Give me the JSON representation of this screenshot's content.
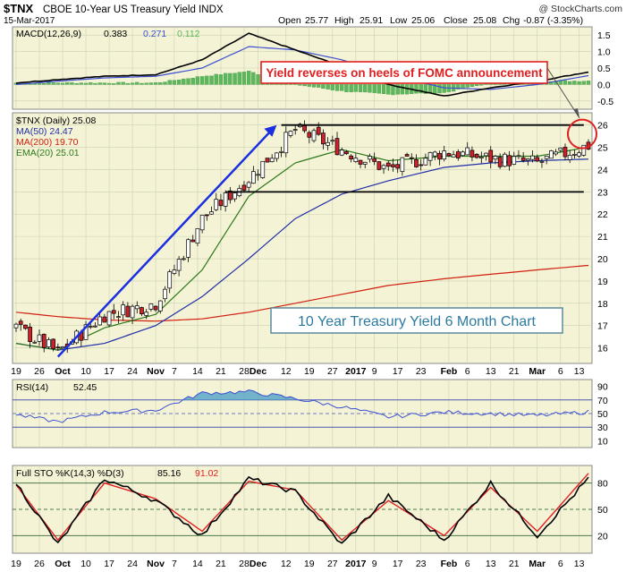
{
  "header": {
    "symbol": "$TNX",
    "name": "CBOE 10-Year US Treasury Yield INDX",
    "credit": "@ StockCharts.com",
    "date": "15-Mar-2017",
    "open_label": "Open",
    "open": "25.77",
    "high_label": "High",
    "high": "25.91",
    "low_label": "Low",
    "low": "25.06",
    "close_label": "Close",
    "close": "25.08",
    "chg_label": "Chg",
    "chg": "-0.87 (-3.35%)"
  },
  "annotations": {
    "fomc": "Yield reverses on heels of FOMC announcement",
    "title_box": "10 Year Treasury Yield 6 Month Chart"
  },
  "x_axis": {
    "labels": [
      "19",
      "26",
      "Oct",
      "10",
      "17",
      "24",
      "Nov",
      "7",
      "14",
      "21",
      "28",
      "Dec",
      "12",
      "19",
      "27",
      "2017",
      "9",
      "17",
      "23",
      "Feb",
      "6",
      "13",
      "21",
      "Mar",
      "6",
      "13"
    ],
    "bold": [
      "Oct",
      "Nov",
      "Dec",
      "2017",
      "Feb",
      "Mar"
    ]
  },
  "colors": {
    "panel_bg": "#f5f3d6",
    "grid": "#c8d2b0",
    "price_frame": "#5a8a9a",
    "up_candle": "#ffffff",
    "down_candle": "#d0202a",
    "ma50": "#1f2fa8",
    "ma200": "#d02010",
    "ema20": "#2d7a1a",
    "macd_line": "#000000",
    "signal_line": "#3b4fd1",
    "histogram": "#5cb85c",
    "rsi_line": "#3b4fd1",
    "rsi_fill": "#5aa6c8",
    "sto_k": "#000000",
    "sto_d": "#e02020",
    "arrow": "#1a2fe0",
    "annotation_red": "#e02020",
    "title_box_text": "#2a7aa0"
  },
  "chart_data": [
    {
      "type": "line",
      "name": "MACD(12,26,9)",
      "legend": {
        "label": "MACD(12,26,9)",
        "macd": "0.383",
        "signal": "0.271",
        "hist": "0.112"
      },
      "y_ticks": [
        "1.5",
        "1.0",
        "0.5",
        "0.0",
        "-0.5"
      ],
      "ylim": [
        -0.75,
        1.75
      ],
      "x": [
        "Sep 19",
        "Oct 1",
        "Oct 15",
        "Nov 1",
        "Nov 15",
        "Dec 1",
        "Dec 15",
        "Jan 1",
        "Jan 15",
        "Feb 1",
        "Feb 15",
        "Mar 1",
        "Mar 15"
      ],
      "series": [
        {
          "name": "MACD",
          "values": [
            0.05,
            0.15,
            0.25,
            0.3,
            0.75,
            1.55,
            1.05,
            0.55,
            0.0,
            -0.35,
            -0.1,
            0.1,
            0.38
          ]
        },
        {
          "name": "Signal",
          "values": [
            0.0,
            0.1,
            0.2,
            0.25,
            0.5,
            1.15,
            1.05,
            0.75,
            0.3,
            -0.1,
            -0.15,
            0.0,
            0.27
          ]
        },
        {
          "name": "Histogram",
          "values": [
            0.05,
            0.05,
            0.05,
            0.05,
            0.25,
            0.4,
            0.0,
            -0.2,
            -0.3,
            -0.25,
            0.05,
            0.1,
            0.11
          ]
        }
      ]
    },
    {
      "type": "candlestick",
      "name": "$TNX (Daily)",
      "legend": {
        "price": "$TNX (Daily) 25.08",
        "ma50": "MA(50) 24.47",
        "ma200": "MA(200) 19.70",
        "ema20": "EMA(20) 25.01"
      },
      "y_ticks": [
        "26",
        "25",
        "24",
        "23",
        "22",
        "21",
        "20",
        "19",
        "18",
        "17",
        "16"
      ],
      "y_tick_values": [
        26,
        25,
        24,
        23,
        22,
        21,
        20,
        19,
        18,
        17,
        16
      ],
      "x": [
        "Sep 19",
        "Oct 1",
        "Oct 15",
        "Nov 1",
        "Nov 15",
        "Dec 1",
        "Dec 15",
        "Jan 1",
        "Jan 15",
        "Feb 1",
        "Feb 15",
        "Mar 1",
        "Mar 15"
      ],
      "close": [
        16.9,
        15.8,
        17.5,
        18.0,
        21.8,
        23.6,
        25.8,
        24.9,
        24.0,
        24.8,
        24.5,
        24.3,
        25.08
      ],
      "ma50": [
        16.2,
        15.9,
        16.2,
        17.0,
        18.3,
        20.0,
        21.8,
        22.9,
        23.5,
        24.1,
        24.3,
        24.4,
        24.47
      ],
      "ma200": [
        17.6,
        17.4,
        17.25,
        17.2,
        17.3,
        17.6,
        18.0,
        18.4,
        18.8,
        19.1,
        19.3,
        19.5,
        19.7
      ],
      "ema20": [
        16.2,
        15.9,
        16.9,
        17.5,
        19.5,
        22.8,
        24.3,
        24.9,
        24.4,
        24.6,
        24.6,
        24.6,
        25.01
      ],
      "resistance": 26.0,
      "support": 23.0,
      "annotation_points": {
        "start": "Oct 1",
        "end": "Dec 12",
        "arrow_from": 15.6,
        "arrow_to": 26.0
      }
    },
    {
      "type": "line",
      "name": "RSI(14)",
      "legend": {
        "label": "RSI(14)",
        "value": "52.45"
      },
      "y_ticks": [
        "90",
        "70",
        "50",
        "30",
        "10"
      ],
      "ylim": [
        0,
        100
      ],
      "levels": [
        70,
        50,
        30
      ],
      "x": [
        "Sep 19",
        "Oct 1",
        "Oct 15",
        "Nov 1",
        "Nov 15",
        "Dec 1",
        "Dec 15",
        "Jan 1",
        "Jan 15",
        "Feb 1",
        "Feb 15",
        "Mar 1",
        "Mar 15"
      ],
      "values": [
        48,
        38,
        52,
        55,
        80,
        82,
        72,
        60,
        45,
        52,
        50,
        47,
        52.45
      ]
    },
    {
      "type": "line",
      "name": "Full STO %K(14,3) %D(3)",
      "legend": {
        "label": "Full STO %K(14,3) %D(3)",
        "k": "85.16",
        "d": "91.02"
      },
      "y_ticks": [
        "80",
        "50",
        "20"
      ],
      "ylim": [
        0,
        100
      ],
      "levels": [
        80,
        50,
        20
      ],
      "x": [
        "Sep 19",
        "Oct 1",
        "Oct 15",
        "Nov 1",
        "Nov 15",
        "Dec 1",
        "Dec 15",
        "Jan 1",
        "Jan 15",
        "Feb 1",
        "Feb 15",
        "Mar 1",
        "Mar 15"
      ],
      "series": [
        {
          "name": "%K",
          "values": [
            80,
            10,
            85,
            60,
            20,
            85,
            70,
            10,
            65,
            15,
            80,
            20,
            85.16
          ]
        },
        {
          "name": "%D",
          "values": [
            78,
            15,
            80,
            62,
            25,
            82,
            72,
            15,
            60,
            20,
            75,
            25,
            91.02
          ]
        }
      ]
    }
  ]
}
